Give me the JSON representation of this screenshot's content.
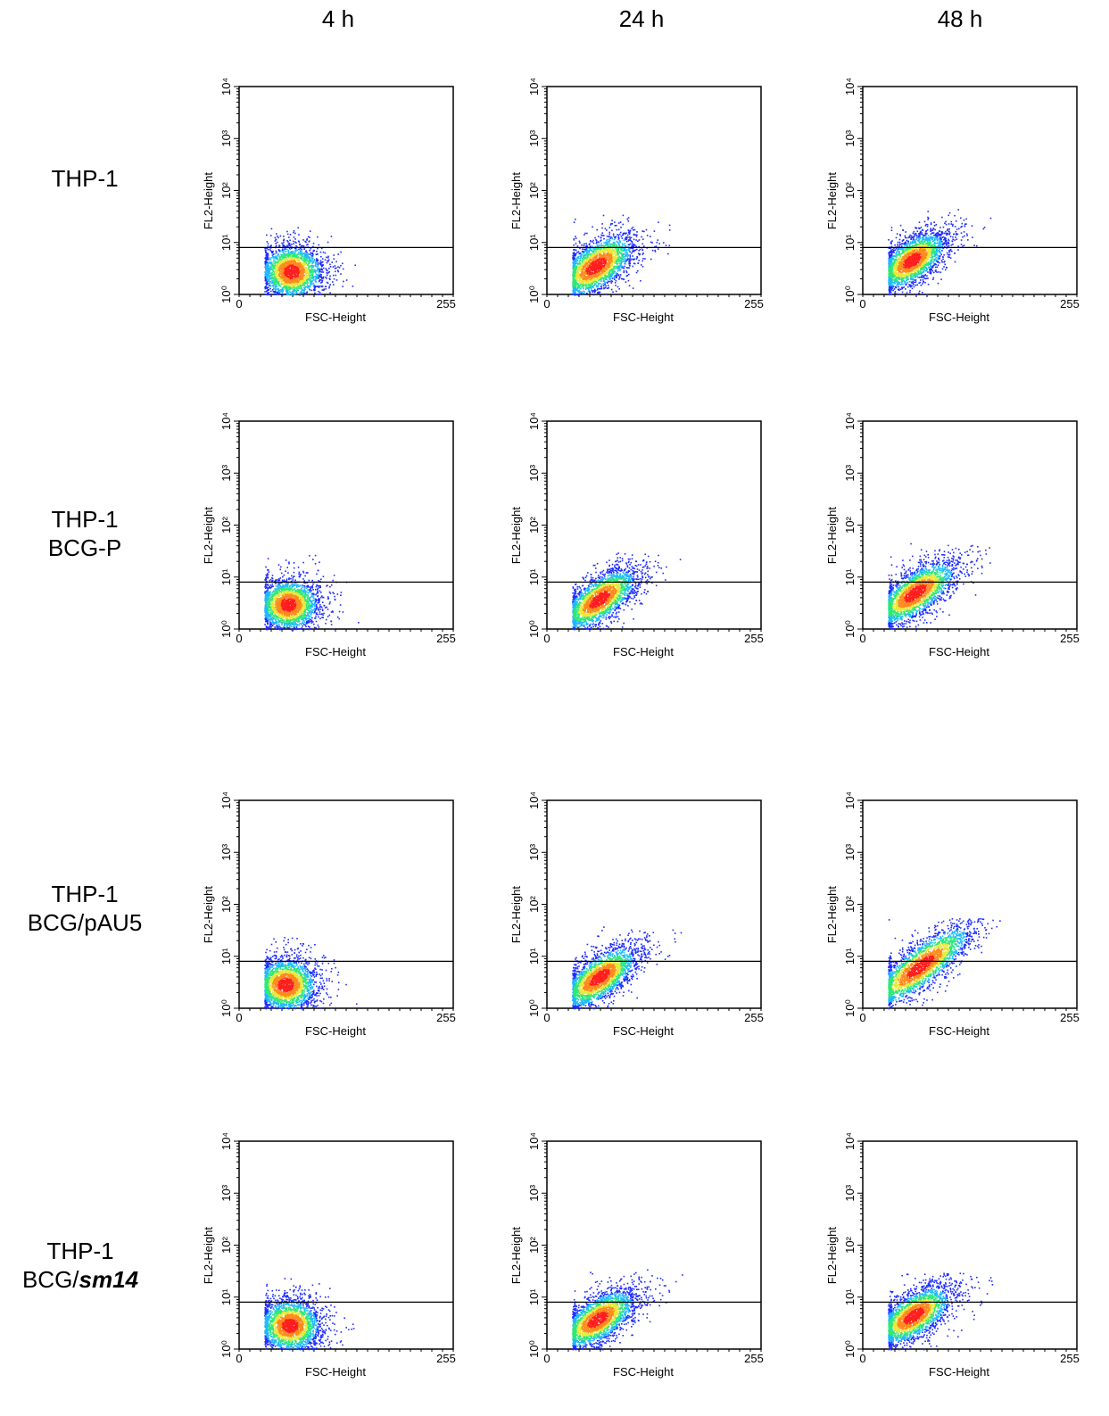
{
  "columns": [
    "4 h",
    "24 h",
    "48 h"
  ],
  "rows": [
    {
      "line1": "THP-1",
      "line2": "",
      "line2_em": ""
    },
    {
      "line1": "THP-1",
      "line2": "BCG-P",
      "line2_em": ""
    },
    {
      "line1": "THP-1",
      "line2": "BCG/pAU5",
      "line2_em": ""
    },
    {
      "line1": "THP-1",
      "line2": "BCG/",
      "line2_em": "sm14"
    }
  ],
  "chart_data": {
    "type": "scatter",
    "plot_kind": "flow cytometry density dot plot",
    "xlabel": "FSC-Height",
    "ylabel": "FL2-Height",
    "x_range": [
      0,
      255
    ],
    "x_ticks": [
      "0",
      "255"
    ],
    "y_scale": "log",
    "y_range": [
      1,
      10000
    ],
    "y_ticks": [
      "10⁰",
      "10¹",
      "10²",
      "10³",
      "10⁴"
    ],
    "gate_line_y": 8,
    "density_colors": [
      "#1f2cff",
      "#1fb9ff",
      "#2fe87a",
      "#e8e83a",
      "#ff8a1e",
      "#ff1e1e"
    ],
    "panels": [
      {
        "row": "THP-1",
        "time": "4 h",
        "center_x": 62,
        "center_y": 2.8,
        "spread_x": 18,
        "spread_logy": 0.25,
        "slope": 0.0,
        "x_max": 140,
        "y_max": 25
      },
      {
        "row": "THP-1",
        "time": "24 h",
        "center_x": 58,
        "center_y": 3.6,
        "spread_x": 22,
        "spread_logy": 0.24,
        "slope": 0.008,
        "x_max": 150,
        "y_max": 35
      },
      {
        "row": "THP-1",
        "time": "48 h",
        "center_x": 58,
        "center_y": 4.6,
        "spread_x": 20,
        "spread_logy": 0.22,
        "slope": 0.008,
        "x_max": 160,
        "y_max": 45
      },
      {
        "row": "THP-1 BCG-P",
        "time": "4 h",
        "center_x": 58,
        "center_y": 3.0,
        "spread_x": 18,
        "spread_logy": 0.24,
        "slope": 0.0,
        "x_max": 145,
        "y_max": 35
      },
      {
        "row": "THP-1 BCG-P",
        "time": "24 h",
        "center_x": 62,
        "center_y": 3.8,
        "spread_x": 22,
        "spread_logy": 0.22,
        "slope": 0.009,
        "x_max": 165,
        "y_max": 30
      },
      {
        "row": "THP-1 BCG-P",
        "time": "48 h",
        "center_x": 62,
        "center_y": 5.0,
        "spread_x": 24,
        "spread_logy": 0.22,
        "slope": 0.009,
        "x_max": 165,
        "y_max": 45
      },
      {
        "row": "THP-1 BCG/pAU5",
        "time": "4 h",
        "center_x": 55,
        "center_y": 2.9,
        "spread_x": 18,
        "spread_logy": 0.25,
        "slope": 0.0,
        "x_max": 140,
        "y_max": 25
      },
      {
        "row": "THP-1 BCG/pAU5",
        "time": "24 h",
        "center_x": 62,
        "center_y": 4.0,
        "spread_x": 22,
        "spread_logy": 0.22,
        "slope": 0.009,
        "x_max": 165,
        "y_max": 40
      },
      {
        "row": "THP-1 BCG/pAU5",
        "time": "48 h",
        "center_x": 68,
        "center_y": 6.5,
        "spread_x": 30,
        "spread_logy": 0.22,
        "slope": 0.011,
        "x_max": 175,
        "y_max": 55
      },
      {
        "row": "THP-1 BCG/sm14",
        "time": "4 h",
        "center_x": 60,
        "center_y": 2.9,
        "spread_x": 18,
        "spread_logy": 0.25,
        "slope": 0.0,
        "x_max": 140,
        "y_max": 25
      },
      {
        "row": "THP-1 BCG/sm14",
        "time": "24 h",
        "center_x": 60,
        "center_y": 3.8,
        "spread_x": 22,
        "spread_logy": 0.22,
        "slope": 0.008,
        "x_max": 165,
        "y_max": 35
      },
      {
        "row": "THP-1 BCG/sm14",
        "time": "48 h",
        "center_x": 60,
        "center_y": 4.5,
        "spread_x": 22,
        "spread_logy": 0.22,
        "slope": 0.008,
        "x_max": 160,
        "y_max": 30
      }
    ]
  }
}
